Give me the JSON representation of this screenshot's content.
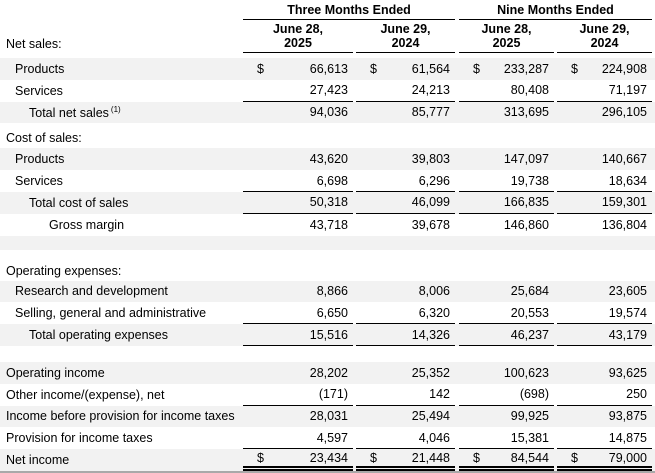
{
  "table": {
    "currency_symbol": "$",
    "header": {
      "groups": [
        {
          "label": "Three Months Ended"
        },
        {
          "label": "Nine Months Ended"
        }
      ],
      "columns": [
        {
          "line1": "June 28,",
          "line2": "2025"
        },
        {
          "line1": "June 29,",
          "line2": "2024"
        },
        {
          "line1": "June 28,",
          "line2": "2025"
        },
        {
          "line1": "June 29,",
          "line2": "2024"
        }
      ],
      "left_label": "Net sales:"
    },
    "rows": [
      {
        "type": "item",
        "label": "Products",
        "indent": 1,
        "dollar": true,
        "shaded": true,
        "values": [
          "66,613",
          "61,564",
          "233,287",
          "224,908"
        ]
      },
      {
        "type": "item",
        "label": "Services",
        "indent": 1,
        "shaded": false,
        "rule": true,
        "values": [
          "27,423",
          "24,213",
          "80,408",
          "71,197"
        ]
      },
      {
        "type": "item",
        "label": "Total net sales",
        "footnote": "(1)",
        "indent": 2,
        "shaded": true,
        "values": [
          "94,036",
          "85,777",
          "313,695",
          "296,105"
        ]
      },
      {
        "type": "section",
        "label": "Cost of sales:",
        "indent": 0,
        "shaded": false
      },
      {
        "type": "item",
        "label": "Products",
        "indent": 1,
        "shaded": true,
        "values": [
          "43,620",
          "39,803",
          "147,097",
          "140,667"
        ]
      },
      {
        "type": "item",
        "label": "Services",
        "indent": 1,
        "shaded": false,
        "rule": true,
        "values": [
          "6,698",
          "6,296",
          "19,738",
          "18,634"
        ]
      },
      {
        "type": "item",
        "label": "Total cost of sales",
        "indent": 2,
        "shaded": true,
        "rule": true,
        "values": [
          "50,318",
          "46,099",
          "166,835",
          "159,301"
        ]
      },
      {
        "type": "item",
        "label": "Gross margin",
        "indent": 3,
        "shaded": false,
        "values": [
          "43,718",
          "39,678",
          "146,860",
          "136,804"
        ]
      },
      {
        "type": "blank",
        "shaded": true
      },
      {
        "type": "section",
        "label": "Operating expenses:",
        "indent": 0,
        "shaded": false,
        "tall": true
      },
      {
        "type": "item",
        "label": "Research and development",
        "indent": 1,
        "shaded": true,
        "values": [
          "8,866",
          "8,006",
          "25,684",
          "23,605"
        ]
      },
      {
        "type": "item",
        "label": "Selling, general and administrative",
        "indent": 1,
        "shaded": false,
        "rule": true,
        "values": [
          "6,650",
          "6,320",
          "20,553",
          "19,574"
        ]
      },
      {
        "type": "item",
        "label": "Total operating expenses",
        "indent": 2,
        "shaded": true,
        "rule": true,
        "values": [
          "15,516",
          "14,326",
          "46,237",
          "43,179"
        ]
      },
      {
        "type": "blank",
        "shaded": false
      },
      {
        "type": "item",
        "label": "Operating income",
        "indent": 0,
        "shaded": true,
        "values": [
          "28,202",
          "25,352",
          "100,623",
          "93,625"
        ]
      },
      {
        "type": "item",
        "label": "Other income/(expense), net",
        "indent": 0,
        "shaded": false,
        "rule": true,
        "values": [
          "(171)",
          "142",
          "(698)",
          "250"
        ]
      },
      {
        "type": "item",
        "label": "Income before provision for income taxes",
        "indent": 0,
        "shaded": true,
        "values": [
          "28,031",
          "25,494",
          "99,925",
          "93,875"
        ]
      },
      {
        "type": "item",
        "label": "Provision for income taxes",
        "indent": 0,
        "shaded": false,
        "rule": true,
        "values": [
          "4,597",
          "4,046",
          "15,381",
          "14,875"
        ]
      },
      {
        "type": "item",
        "label": "Net income",
        "indent": 0,
        "dollar": true,
        "shaded": true,
        "double_rule": true,
        "values": [
          "23,434",
          "21,448",
          "84,544",
          "79,000"
        ]
      }
    ]
  },
  "colors": {
    "row_shade": "#f2f2f2",
    "rule": "#000000",
    "text": "#000000",
    "bottom_edge": "#a9a9a9"
  }
}
